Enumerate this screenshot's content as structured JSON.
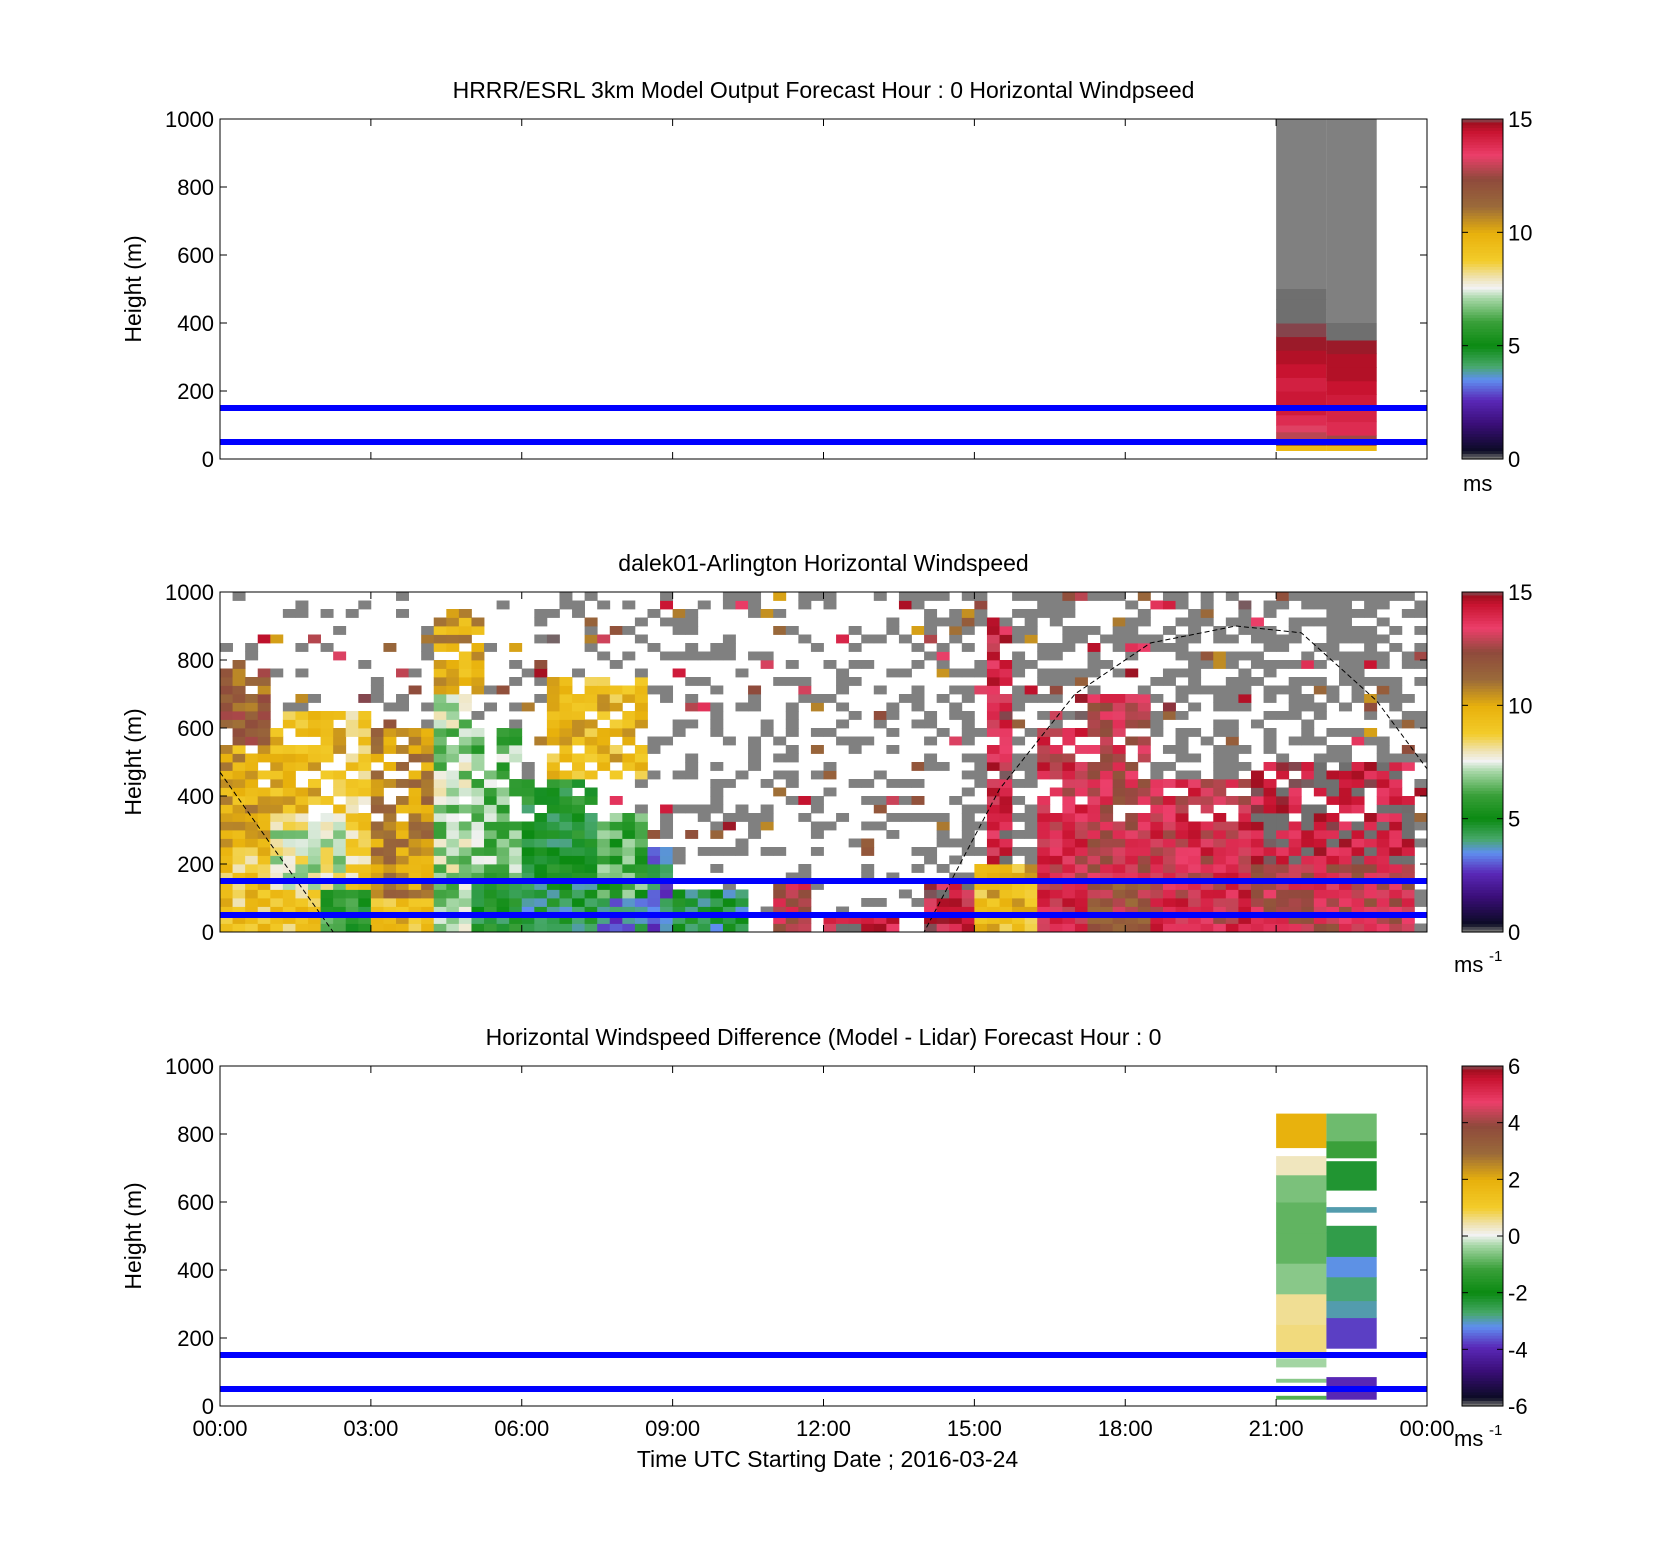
{
  "figure": {
    "xlabel": "Time UTC  Starting Date ; 2016-03-24",
    "x_ticks": [
      "00:00",
      "03:00",
      "06:00",
      "09:00",
      "12:00",
      "15:00",
      "18:00",
      "21:00",
      "00:00"
    ],
    "y_ticks": [
      "0",
      "200",
      "400",
      "600",
      "800",
      "1000"
    ],
    "reference_lines_m": [
      50,
      150
    ],
    "reference_line_color": "#0000ff"
  },
  "chart_data": [
    {
      "type": "heatmap",
      "title": "HRRR/ESRL 3km Model Output   Forecast Hour : 0 Horizontal Windpseed",
      "xlabel": "",
      "ylabel": "Height (m)",
      "xlim_hours": [
        0,
        24
      ],
      "ylim": [
        0,
        1000
      ],
      "colorbar": {
        "ticks": [
          "0",
          "5",
          "10",
          "15"
        ],
        "min": 0,
        "max": 15,
        "unit": "ms"
      },
      "columns": [
        {
          "x_start_h": 21,
          "x_end_h": 22,
          "cells": [
            [
              25,
              40,
              9.5
            ],
            [
              40,
              60,
              12.0
            ],
            [
              60,
              80,
              12.8
            ],
            [
              80,
              100,
              13.2
            ],
            [
              100,
              130,
              13.8
            ],
            [
              130,
              160,
              14.2
            ],
            [
              160,
              200,
              14.3
            ],
            [
              200,
              240,
              14.1
            ],
            [
              240,
              280,
              14.4
            ],
            [
              280,
              320,
              14.6
            ],
            [
              320,
              360,
              14.8
            ],
            [
              360,
              400,
              14.9
            ],
            [
              400,
              440,
              15.1
            ],
            [
              440,
              470,
              15.2
            ],
            [
              470,
              500,
              15.3
            ]
          ],
          "missing_above_m": 500
        },
        {
          "x_start_h": 22,
          "x_end_h": 23,
          "cells": [
            [
              25,
              40,
              9.5
            ],
            [
              40,
              70,
              12.5
            ],
            [
              70,
              110,
              13.8
            ],
            [
              110,
              150,
              14.0
            ],
            [
              150,
              190,
              14.2
            ],
            [
              190,
              230,
              14.4
            ],
            [
              230,
              270,
              14.6
            ],
            [
              270,
              310,
              14.6
            ],
            [
              310,
              350,
              14.8
            ],
            [
              350,
              400,
              15.2
            ]
          ],
          "missing_above_m": 400
        }
      ]
    },
    {
      "type": "heatmap",
      "title": "dalek01-Arlington  Horizontal Windspeed",
      "xlabel": "",
      "ylabel": "Height (m)",
      "xlim_hours": [
        0,
        24
      ],
      "ylim": [
        0,
        1000
      ],
      "colorbar": {
        "ticks": [
          "0",
          "5",
          "10",
          "15"
        ],
        "min": 0,
        "max": 15,
        "unit": "ms",
        "unit_exponent": "-1"
      },
      "cell_size": {
        "dx_h": 0.25,
        "dy_m": 25
      },
      "regions": [
        {
          "t0": 0.0,
          "t1": 1.0,
          "h0": 0,
          "h1": 250,
          "v": 9.0
        },
        {
          "t0": 0.0,
          "t1": 1.0,
          "h0": 250,
          "h1": 550,
          "v": 10.0
        },
        {
          "t0": 0.0,
          "t1": 1.0,
          "h0": 550,
          "h1": 800,
          "v": 11.5
        },
        {
          "t0": 1.0,
          "t1": 2.0,
          "h0": 0,
          "h1": 120,
          "v": 9.0
        },
        {
          "t0": 1.0,
          "t1": 2.5,
          "h0": 120,
          "h1": 350,
          "v": 7.5
        },
        {
          "t0": 1.0,
          "t1": 2.5,
          "h0": 350,
          "h1": 650,
          "v": 9.5
        },
        {
          "t0": 2.0,
          "t1": 3.0,
          "h0": 0,
          "h1": 120,
          "v": 5.5
        },
        {
          "t0": 2.5,
          "t1": 3.0,
          "h0": 120,
          "h1": 650,
          "v": 8.5
        },
        {
          "t0": 3.0,
          "t1": 4.25,
          "h0": 0,
          "h1": 100,
          "v": 9.5
        },
        {
          "t0": 3.0,
          "t1": 4.25,
          "h0": 100,
          "h1": 600,
          "v": 10.5
        },
        {
          "t0": 4.25,
          "t1": 5.0,
          "h0": 0,
          "h1": 700,
          "v": 7.0
        },
        {
          "t0": 4.25,
          "t1": 5.25,
          "h0": 700,
          "h1": 950,
          "v": 10.0
        },
        {
          "t0": 5.0,
          "t1": 6.0,
          "h0": 0,
          "h1": 150,
          "v": 5.0
        },
        {
          "t0": 5.0,
          "t1": 6.0,
          "h0": 150,
          "h1": 600,
          "v": 6.5
        },
        {
          "t0": 6.0,
          "t1": 7.5,
          "h0": 0,
          "h1": 150,
          "v": 4.5
        },
        {
          "t0": 6.0,
          "t1": 7.5,
          "h0": 150,
          "h1": 450,
          "v": 5.0
        },
        {
          "t0": 7.5,
          "t1": 8.5,
          "h0": 0,
          "h1": 100,
          "v": 3.5
        },
        {
          "t0": 7.5,
          "t1": 8.5,
          "h0": 100,
          "h1": 350,
          "v": 6.0
        },
        {
          "t0": 6.5,
          "t1": 8.5,
          "h0": 450,
          "h1": 750,
          "v": 9.5
        },
        {
          "t0": 8.5,
          "t1": 9.0,
          "h0": 0,
          "h1": 250,
          "v": 3.5
        },
        {
          "t0": 9.0,
          "t1": 10.5,
          "h0": 0,
          "h1": 120,
          "v": 4.5
        },
        {
          "t0": 11.0,
          "t1": 11.75,
          "h0": 0,
          "h1": 150,
          "v": 13.0
        },
        {
          "t0": 12.0,
          "t1": 13.5,
          "h0": 0,
          "h1": 50,
          "v": 14.0
        },
        {
          "t0": 14.0,
          "t1": 15.0,
          "h0": 0,
          "h1": 150,
          "v": 14.0
        },
        {
          "t0": 15.0,
          "t1": 16.25,
          "h0": 0,
          "h1": 200,
          "v": 9.5
        },
        {
          "t0": 15.25,
          "t1": 15.75,
          "h0": 200,
          "h1": 900,
          "v": 14.0
        },
        {
          "t0": 16.25,
          "t1": 17.25,
          "h0": 0,
          "h1": 600,
          "v": 13.5
        },
        {
          "t0": 17.25,
          "t1": 18.5,
          "h0": 0,
          "h1": 150,
          "v": 12.0
        },
        {
          "t0": 17.25,
          "t1": 18.5,
          "h0": 150,
          "h1": 700,
          "v": 13.0
        },
        {
          "t0": 18.5,
          "t1": 20.5,
          "h0": 0,
          "h1": 450,
          "v": 13.5
        },
        {
          "t0": 20.5,
          "t1": 23.75,
          "h0": 0,
          "h1": 200,
          "v": 13.0
        },
        {
          "t0": 20.5,
          "t1": 23.75,
          "h0": 200,
          "h1": 500,
          "v": 14.5
        }
      ],
      "sparse_upper_levels": "mixed gray and colored cells with gaps above ~300 m",
      "boundary_curve_points_h_m": [
        [
          0.0,
          470
        ],
        [
          1.0,
          260
        ],
        [
          2.25,
          0
        ],
        [
          14.0,
          0
        ],
        [
          15.5,
          420
        ],
        [
          17.0,
          700
        ],
        [
          18.5,
          850
        ],
        [
          20.2,
          900
        ],
        [
          21.5,
          880
        ],
        [
          23.0,
          680
        ],
        [
          24.0,
          480
        ]
      ]
    },
    {
      "type": "heatmap",
      "title": "Horizontal Windspeed Difference (Model - Lidar) Forecast Hour : 0",
      "xlabel": "Time UTC  Starting Date ; 2016-03-24",
      "ylabel": "Height (m)",
      "xlim_hours": [
        0,
        24
      ],
      "ylim": [
        0,
        1000
      ],
      "colorbar": {
        "ticks": [
          "-6",
          "-4",
          "-2",
          "0",
          "2",
          "4",
          "6"
        ],
        "min": -6,
        "max": 6,
        "unit": "ms",
        "unit_exponent": "-1"
      },
      "columns": [
        {
          "x_start_h": 21,
          "x_end_h": 22,
          "cells": [
            [
              20,
              30,
              -1.0
            ],
            [
              70,
              80,
              -0.6
            ],
            [
              115,
              140,
              -0.4
            ],
            [
              160,
              240,
              0.6
            ],
            [
              240,
              330,
              0.5
            ],
            [
              330,
              420,
              -0.6
            ],
            [
              420,
              510,
              -0.9
            ],
            [
              510,
              600,
              -0.9
            ],
            [
              600,
              680,
              -0.7
            ],
            [
              680,
              735,
              0.3
            ],
            [
              760,
              860,
              1.9
            ]
          ]
        },
        {
          "x_start_h": 22,
          "x_end_h": 23,
          "cells": [
            [
              20,
              85,
              -4.0
            ],
            [
              170,
              260,
              -3.8
            ],
            [
              260,
              310,
              -3.0
            ],
            [
              310,
              380,
              -2.8
            ],
            [
              380,
              440,
              -3.2
            ],
            [
              440,
              530,
              -2.5
            ],
            [
              570,
              585,
              -3.0
            ],
            [
              635,
              720,
              -2.3
            ],
            [
              730,
              780,
              -1.2
            ],
            [
              780,
              860,
              -0.8
            ]
          ]
        }
      ]
    }
  ]
}
